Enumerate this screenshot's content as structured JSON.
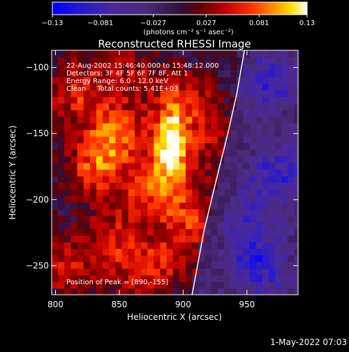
{
  "chart_data": {
    "type": "heatmap",
    "title": "Reconstructed RHESSI Image",
    "xlabel": "Heliocentric X (arcsec)",
    "ylabel": "Heliocentric Y (arcsec)",
    "xlim": [
      797,
      990
    ],
    "ylim": [
      -272,
      -87
    ],
    "xticks": [
      800,
      850,
      900,
      950
    ],
    "yticks": [
      -100,
      -150,
      -200,
      -250
    ],
    "colorbar": {
      "range": [
        -0.13,
        0.13
      ],
      "ticks": [
        -0.13,
        -0.081,
        -0.027,
        0.027,
        0.081,
        0.13
      ],
      "tick_labels": [
        "−0.13",
        "−0.081",
        "−0.027",
        "0.027",
        "0.081",
        "0.13"
      ],
      "unit_label": "(photons cm⁻² s⁻¹ asec⁻²)"
    },
    "annotations": [
      "22-Aug-2002 15:46:40.000 to 15:48:12.000",
      "Detectors: 3F 4F 5F 6F 7F 8F, Att 1",
      "Energy Range: 6.0 - 12.0 keV",
      "Clean     Total counts: 5.41E+03"
    ],
    "peak_label": "Position of Peak = [890,-155]",
    "peak": {
      "x": 890,
      "y": -155
    },
    "limb_points": [
      [
        948,
        -87
      ],
      [
        942,
        -120
      ],
      [
        935,
        -150
      ],
      [
        926,
        -185
      ],
      [
        916,
        -225
      ],
      [
        907,
        -272
      ]
    ],
    "sources": [
      {
        "x": 890,
        "y": -160,
        "value": 0.13
      },
      {
        "x": 848,
        "y": -150,
        "value": 0.08
      },
      {
        "x": 832,
        "y": -175,
        "value": 0.07
      },
      {
        "x": 872,
        "y": -195,
        "value": 0.06
      },
      {
        "x": 818,
        "y": -120,
        "value": 0.06
      },
      {
        "x": 905,
        "y": -125,
        "value": 0.05
      },
      {
        "x": 910,
        "y": -210,
        "value": 0.06
      },
      {
        "x": 845,
        "y": -230,
        "value": 0.05
      },
      {
        "x": 868,
        "y": -255,
        "value": 0.05
      },
      {
        "x": 808,
        "y": -250,
        "value": 0.05
      },
      {
        "x": 860,
        "y": -105,
        "value": 0.04
      },
      {
        "x": 918,
        "y": -160,
        "value": 0.04
      },
      {
        "x": 895,
        "y": -240,
        "value": 0.04
      },
      {
        "x": 960,
        "y": -250,
        "value": -0.07
      },
      {
        "x": 975,
        "y": -180,
        "value": -0.06
      },
      {
        "x": 968,
        "y": -110,
        "value": -0.06
      },
      {
        "x": 945,
        "y": -215,
        "value": -0.05
      }
    ]
  },
  "timestamp": "1-May-2022 07:03"
}
